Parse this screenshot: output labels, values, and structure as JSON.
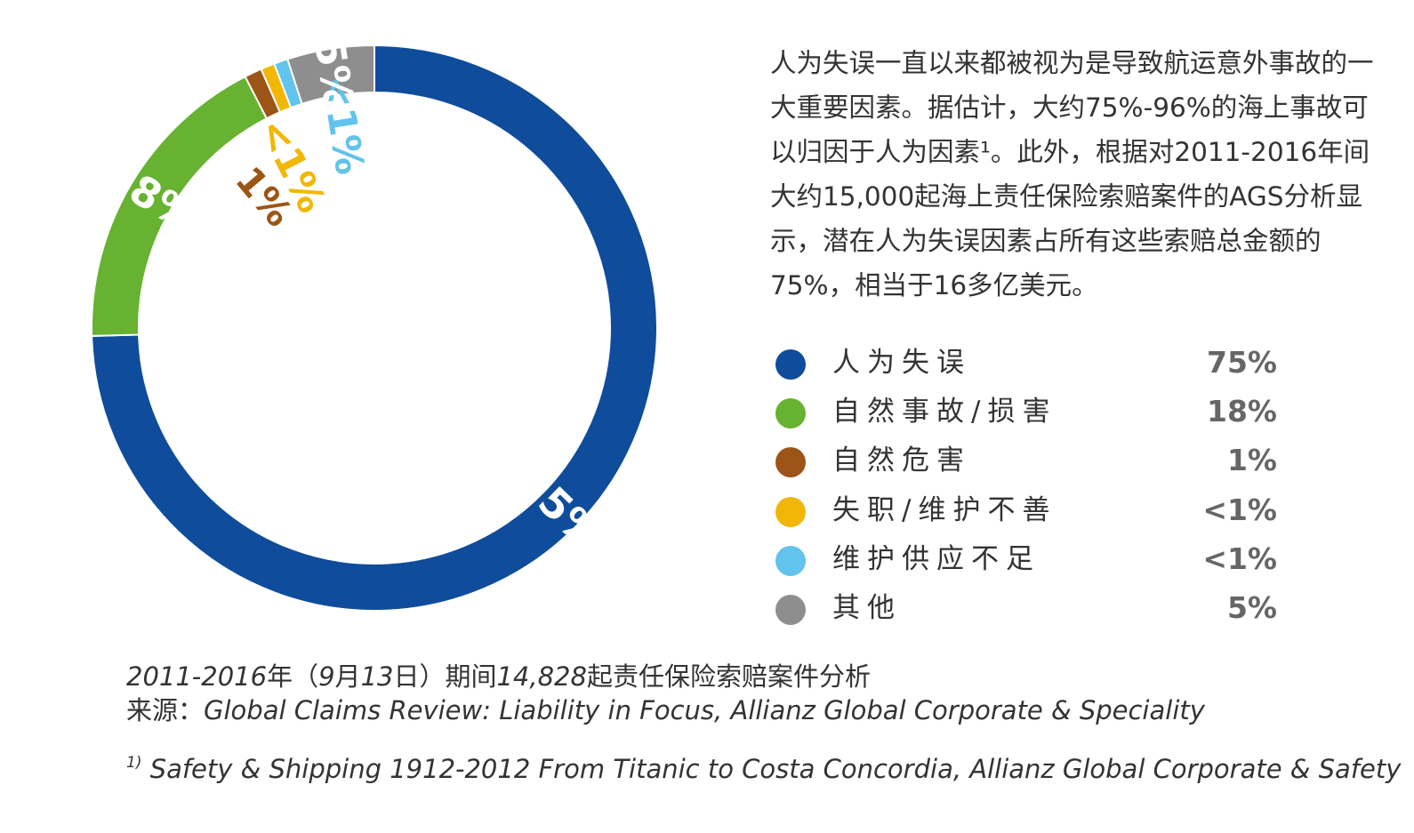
{
  "chart_data": {
    "type": "pie",
    "categories": [
      "人为失误",
      "自然事故/损害",
      "自然危害",
      "失职/维护不善",
      "维护供应不足",
      "其他"
    ],
    "values": [
      75,
      18,
      1,
      0.8,
      0.8,
      5
    ],
    "value_labels": [
      "75%",
      "18%",
      "1%",
      "<1%",
      "<1%",
      "5%"
    ],
    "colors": [
      "#0f4c9c",
      "#67b231",
      "#9c5516",
      "#f2b706",
      "#62c3ec",
      "#8e8e8e"
    ]
  },
  "intro_text": "人为失误一直以来都被视为是导致航运意外事故的一大重要因素。据估计，大约75%-96%的海上事故可以归因于人为因素¹。此外，根据对2011-2016年间大约15,000起海上责任保险索赔案件的AGS分析显示，潜在人为失误因素占所有这些索赔总金额的75%，相当于16多亿美元。",
  "legend": [
    {
      "label": "人为失误",
      "value": "75%",
      "color": "#0f4c9c"
    },
    {
      "label": "自然事故/损害",
      "value": "18%",
      "color": "#67b231"
    },
    {
      "label": "自然危害",
      "value": "1%",
      "color": "#9c5516"
    },
    {
      "label": "失职/维护不善",
      "value": "<1%",
      "color": "#f2b706"
    },
    {
      "label": "维护供应不足",
      "value": "<1%",
      "color": "#62c3ec"
    },
    {
      "label": "其他",
      "value": "5%",
      "color": "#8e8e8e"
    }
  ],
  "footer": {
    "period_range": "2011-2016",
    "period_year_char": "年（",
    "period_date": "9",
    "period_month_char": "月",
    "period_day": "13",
    "period_day_char": "日）期间",
    "period_count": "14,828",
    "period_suffix": "起责任保险索赔案件分析",
    "source_label": "来源：",
    "source_text": "Global Claims Review: Liability in Focus, Allianz Global Corporate & Speciality",
    "footnote_mark": "1)",
    "footnote_text": "Safety & Shipping 1912-2012 From Titanic to Costa Concordia, Allianz Global Corporate & Safety"
  }
}
